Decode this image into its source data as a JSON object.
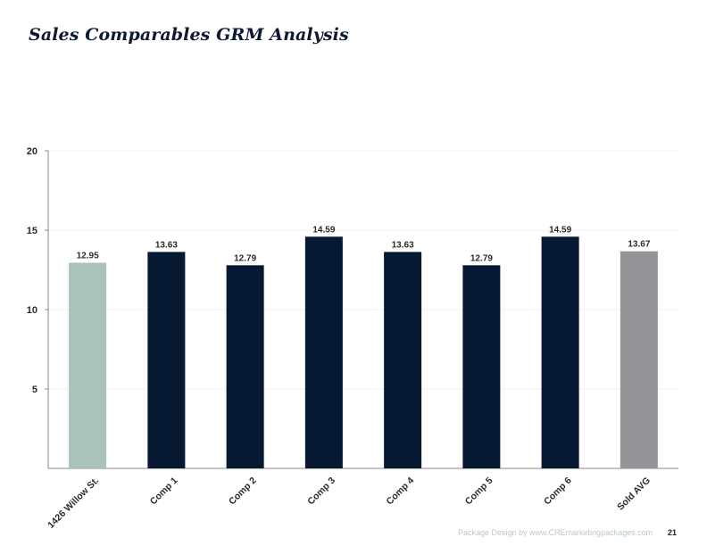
{
  "page": {
    "title": "Sales Comparables GRM Analysis",
    "footer_text": "Package Design by www.CREmarketingpackages.com",
    "page_number": "21"
  },
  "colors": {
    "subject": "#a8c3bb",
    "comp": "#071833",
    "average": "#939598",
    "axis": "#8a8a8a",
    "grid": "#f1f1f1"
  },
  "chart_data": {
    "type": "bar",
    "title": "",
    "xlabel": "",
    "ylabel": "",
    "ylim": [
      0,
      20
    ],
    "yticks": [
      5,
      10,
      15,
      20
    ],
    "grid": true,
    "categories": [
      "1426 Willow St.",
      "Comp 1",
      "Comp 2",
      "Comp 3",
      "Comp 4",
      "Comp 5",
      "Comp 6",
      "Sold AVG"
    ],
    "values": [
      12.95,
      13.63,
      12.79,
      14.59,
      13.63,
      12.79,
      14.59,
      13.67
    ],
    "data_labels": [
      "12.95",
      "13.63",
      "12.79",
      "14.59",
      "13.63",
      "12.79",
      "14.59",
      "13.67"
    ],
    "bar_roles": [
      "subject",
      "comp",
      "comp",
      "comp",
      "comp",
      "comp",
      "comp",
      "average"
    ]
  }
}
